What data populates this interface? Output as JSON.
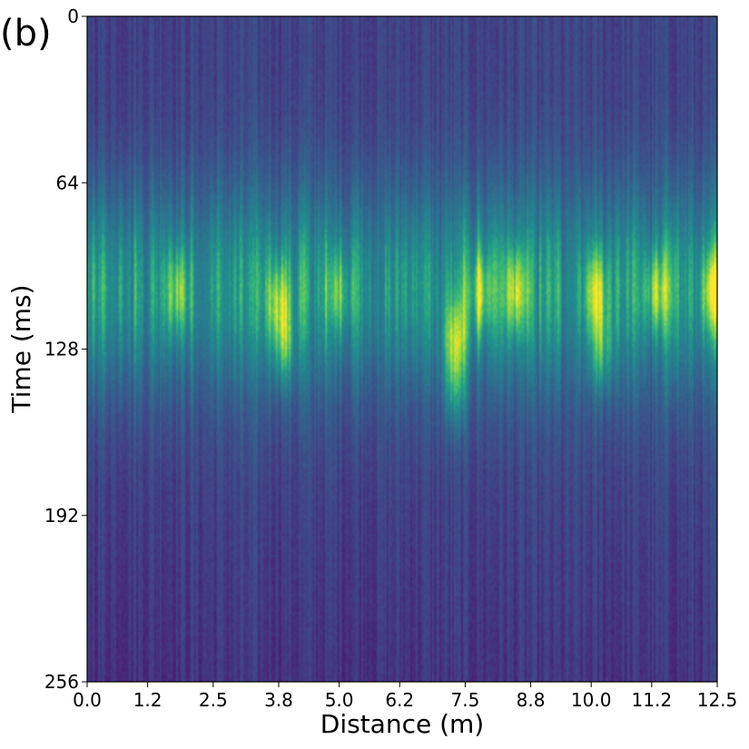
{
  "panel_label": "(b)",
  "chart_data": {
    "type": "heatmap",
    "title": "",
    "xlabel": "Distance (m)",
    "ylabel": "Time (ms)",
    "xlim": [
      0.0,
      12.5
    ],
    "ylim": [
      256,
      0
    ],
    "x_ticks": [
      0.0,
      1.2,
      2.5,
      3.8,
      5.0,
      6.2,
      7.5,
      8.8,
      10.0,
      11.2,
      12.5
    ],
    "x_tick_labels": [
      "0.0",
      "1.2",
      "2.5",
      "3.8",
      "5.0",
      "6.2",
      "7.5",
      "8.8",
      "10.0",
      "11.2",
      "12.5"
    ],
    "y_ticks": [
      0,
      64,
      128,
      192,
      256
    ],
    "y_tick_labels": [
      "0",
      "64",
      "128",
      "192",
      "256"
    ],
    "colormap": "viridis",
    "band_center_ms": 105,
    "band_halfwidth_ms": 40,
    "hotspots": [
      {
        "distance_m": 1.8,
        "time_ms": 106,
        "intensity": 0.75
      },
      {
        "distance_m": 3.8,
        "time_ms": 110,
        "intensity": 0.85
      },
      {
        "distance_m": 3.9,
        "time_ms": 128,
        "intensity": 0.7
      },
      {
        "distance_m": 5.0,
        "time_ms": 106,
        "intensity": 0.65
      },
      {
        "distance_m": 7.3,
        "time_ms": 125,
        "intensity": 1.0
      },
      {
        "distance_m": 7.3,
        "time_ms": 145,
        "intensity": 0.7
      },
      {
        "distance_m": 7.8,
        "time_ms": 106,
        "intensity": 0.8
      },
      {
        "distance_m": 8.5,
        "time_ms": 106,
        "intensity": 0.85
      },
      {
        "distance_m": 10.1,
        "time_ms": 106,
        "intensity": 0.9
      },
      {
        "distance_m": 10.2,
        "time_ms": 130,
        "intensity": 0.7
      },
      {
        "distance_m": 11.3,
        "time_ms": 106,
        "intensity": 0.85
      },
      {
        "distance_m": 12.4,
        "time_ms": 106,
        "intensity": 0.85
      }
    ]
  }
}
